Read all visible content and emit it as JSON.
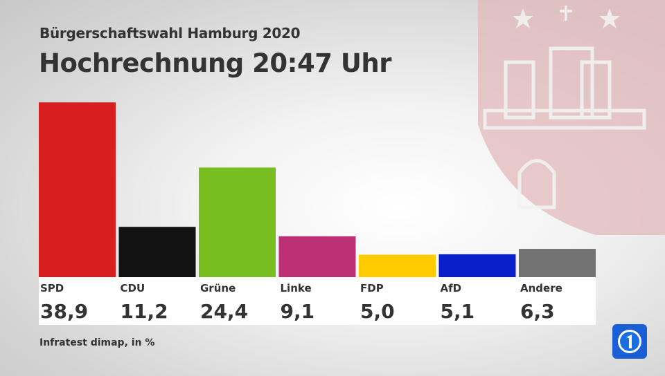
{
  "header": {
    "subtitle": "Bürgerschaftswahl Hamburg 2020",
    "title": "Hochrechnung 20:47 Uhr"
  },
  "footer": {
    "source": "Infratest dimap, in %"
  },
  "logo": {
    "icon": "tagesschau-logo-icon"
  },
  "background": {
    "icon": "hamburg-coat-of-arms-icon"
  },
  "chart_data": {
    "type": "bar",
    "unit": "%",
    "categories": [
      "SPD",
      "CDU",
      "Grüne",
      "Linke",
      "FDP",
      "AfD",
      "Andere"
    ],
    "values": [
      38.9,
      11.2,
      24.4,
      9.1,
      5.0,
      5.1,
      6.3
    ],
    "value_labels": [
      "38,9",
      "11,2",
      "24,4",
      "9,1",
      "5,0",
      "5,1",
      "6,3"
    ],
    "colors": [
      "#d81f1f",
      "#121212",
      "#78be20",
      "#be3075",
      "#ffcc00",
      "#0a1fcc",
      "#737373"
    ],
    "ylim": [
      0,
      40
    ],
    "grid": false
  }
}
